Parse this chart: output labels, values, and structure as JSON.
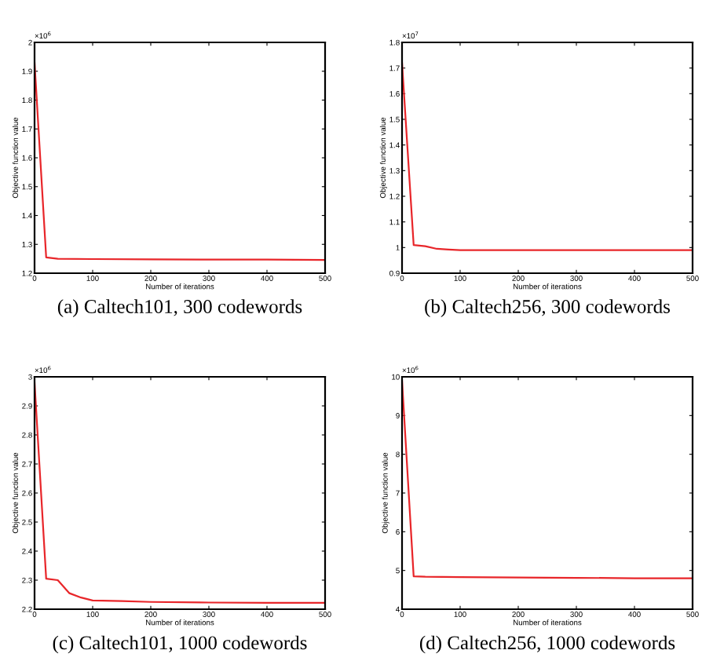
{
  "chart_data": [
    {
      "type": "line",
      "title": "(a) Caltech101, 300 codewords",
      "xlabel": "Number of iterations",
      "ylabel": "Objective function value",
      "annotations": [
        "×10$^{6}$"
      ],
      "x": [
        0,
        20,
        40,
        100,
        200,
        300,
        400,
        500
      ],
      "series": [
        {
          "color": "#e8262a",
          "values": [
            1.93,
            1.255,
            1.25,
            1.249,
            1.248,
            1.247,
            1.247,
            1.246
          ]
        }
      ],
      "xlim": [
        0,
        500
      ],
      "xticks": [
        0,
        100,
        200,
        300,
        400,
        500
      ],
      "ylim": [
        1.2,
        2
      ],
      "yticks": [
        1.2,
        1.3,
        1.4,
        1.5,
        1.6,
        1.7,
        1.8,
        1.9,
        2
      ],
      "grid": false,
      "legend": false,
      "marker": "none",
      "line_style": "solid"
    },
    {
      "type": "line",
      "title": "(b) Caltech256, 300 codewords",
      "xlabel": "Number of iterations",
      "ylabel": "Objective function value",
      "annotations": [
        "×10$^{7}$"
      ],
      "x": [
        0,
        20,
        40,
        60,
        80,
        100,
        200,
        300,
        400,
        500
      ],
      "series": [
        {
          "color": "#e8262a",
          "values": [
            1.72,
            1.01,
            1.005,
            0.995,
            0.992,
            0.99,
            0.99,
            0.99,
            0.99,
            0.99
          ]
        }
      ],
      "xlim": [
        0,
        500
      ],
      "xticks": [
        0,
        100,
        200,
        300,
        400,
        500
      ],
      "ylim": [
        0.9,
        1.8
      ],
      "yticks": [
        0.9,
        1,
        1.1,
        1.2,
        1.3,
        1.4,
        1.5,
        1.6,
        1.7,
        1.8
      ],
      "grid": false,
      "legend": false,
      "marker": "none",
      "line_style": "solid"
    },
    {
      "type": "line",
      "title": "(c) Caltech101, 1000 codewords",
      "xlabel": "Number of iterations",
      "ylabel": "Objective function value",
      "annotations": [
        "×10$^{6}$"
      ],
      "x": [
        0,
        20,
        40,
        60,
        80,
        100,
        150,
        200,
        300,
        400,
        500
      ],
      "series": [
        {
          "color": "#e8262a",
          "values": [
            2.98,
            2.305,
            2.3,
            2.255,
            2.24,
            2.23,
            2.228,
            2.225,
            2.223,
            2.222,
            2.222
          ]
        }
      ],
      "xlim": [
        0,
        500
      ],
      "xticks": [
        0,
        100,
        200,
        300,
        400,
        500
      ],
      "ylim": [
        2.2,
        3
      ],
      "yticks": [
        2.2,
        2.3,
        2.4,
        2.5,
        2.6,
        2.7,
        2.8,
        2.9,
        3
      ],
      "grid": false,
      "legend": false,
      "marker": "none",
      "line_style": "solid"
    },
    {
      "type": "line",
      "title": "(d) Caltech256, 1000 codewords",
      "xlabel": "Number of iterations",
      "ylabel": "Objective function value",
      "annotations": [
        "×10$^{6}$"
      ],
      "x": [
        0,
        20,
        40,
        100,
        200,
        300,
        400,
        500
      ],
      "series": [
        {
          "color": "#e8262a",
          "values": [
            9.9,
            4.85,
            4.84,
            4.83,
            4.82,
            4.81,
            4.8,
            4.8
          ]
        }
      ],
      "xlim": [
        0,
        500
      ],
      "xticks": [
        0,
        100,
        200,
        300,
        400,
        500
      ],
      "ylim": [
        4,
        10
      ],
      "yticks": [
        4,
        5,
        6,
        7,
        8,
        9,
        10
      ],
      "grid": false,
      "legend": false,
      "marker": "none",
      "line_style": "solid"
    }
  ]
}
